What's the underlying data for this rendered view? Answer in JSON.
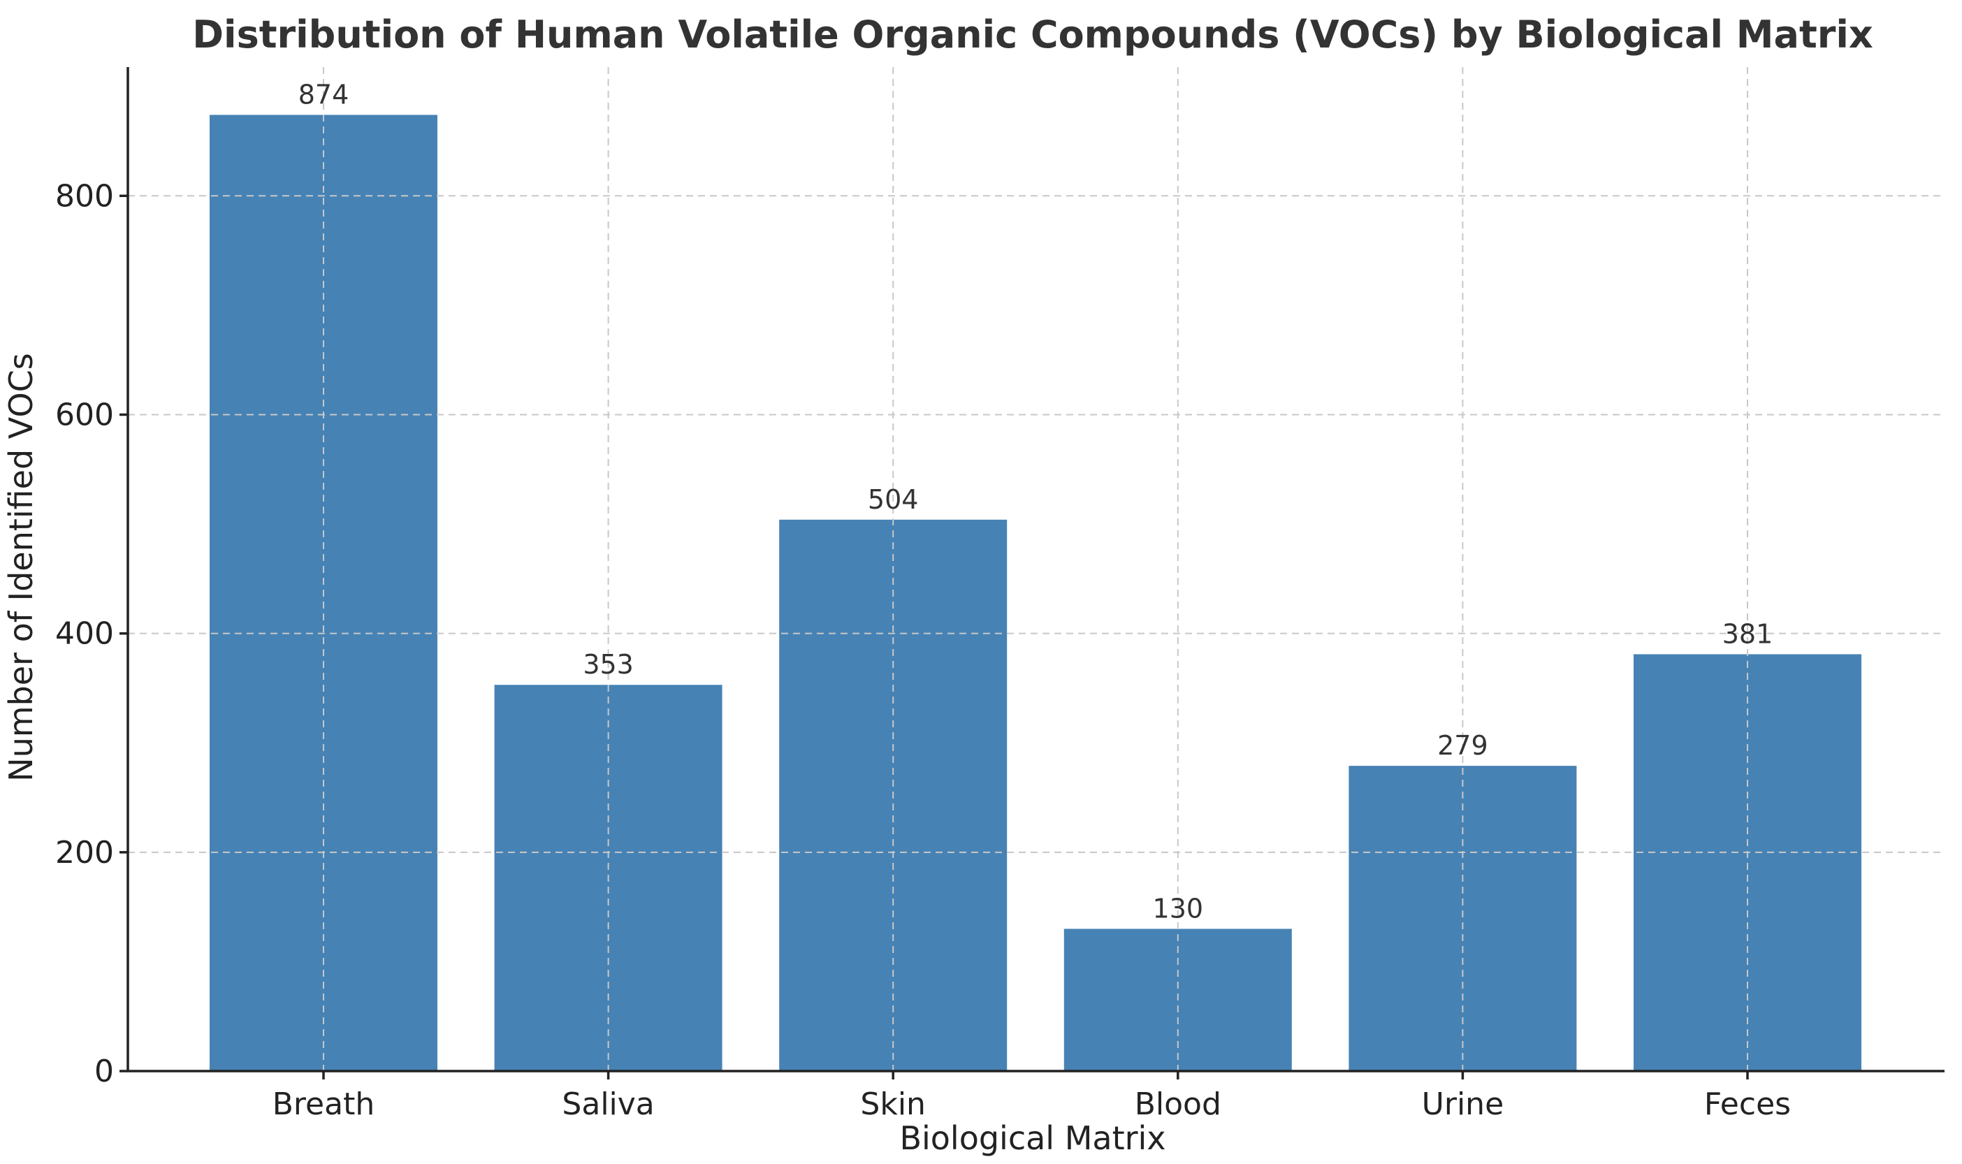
{
  "chart_data": {
    "type": "bar",
    "title": "Distribution of Human Volatile Organic Compounds (VOCs) by Biological Matrix",
    "xlabel": "Biological Matrix",
    "ylabel": "Number of Identified VOCs",
    "categories": [
      "Breath",
      "Saliva",
      "Skin",
      "Blood",
      "Urine",
      "Feces"
    ],
    "values": [
      874,
      353,
      504,
      130,
      279,
      381
    ],
    "data_labels": [
      "874",
      "353",
      "504",
      "130",
      "279",
      "381"
    ],
    "yticks": [
      0,
      200,
      400,
      600,
      800
    ],
    "ytick_labels": [
      "0",
      "200",
      "400",
      "600",
      "800"
    ],
    "ylim": [
      0,
      917.7
    ],
    "grid": true,
    "bar_color": "#4682b4"
  }
}
